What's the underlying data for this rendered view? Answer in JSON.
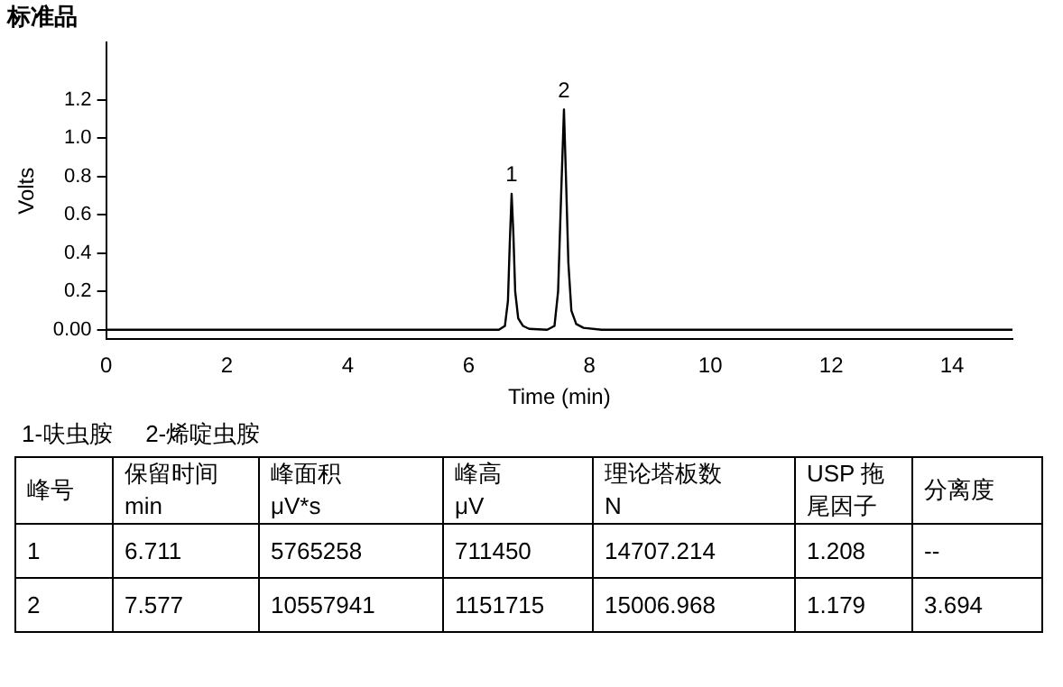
{
  "chart_data": {
    "type": "line",
    "title": "标准品",
    "xlabel": "Time (min)",
    "ylabel": "Volts",
    "x": [
      0,
      6.5,
      6.6,
      6.65,
      6.68,
      6.711,
      6.74,
      6.77,
      6.82,
      6.9,
      7.0,
      7.3,
      7.42,
      7.48,
      7.53,
      7.577,
      7.61,
      7.65,
      7.7,
      7.78,
      7.9,
      8.2,
      15
    ],
    "series": [
      {
        "color": "#000000",
        "values": [
          0,
          0,
          0.02,
          0.15,
          0.45,
          0.71,
          0.5,
          0.2,
          0.06,
          0.02,
          0.005,
          0,
          0.02,
          0.2,
          0.7,
          1.15,
          0.8,
          0.35,
          0.1,
          0.03,
          0.01,
          0,
          0
        ]
      }
    ],
    "xlim": [
      0,
      15
    ],
    "xticks": [
      0,
      2,
      4,
      6,
      8,
      10,
      12,
      14
    ],
    "ylim": [
      -0.05,
      1.5
    ],
    "yticks": [
      {
        "value": 0,
        "label": "0.00"
      },
      {
        "value": 0.2,
        "label": "0.2"
      },
      {
        "value": 0.4,
        "label": "0.4"
      },
      {
        "value": 0.6,
        "label": "0.6"
      },
      {
        "value": 0.8,
        "label": "0.8"
      },
      {
        "value": 1,
        "label": "1.0"
      },
      {
        "value": 1.2,
        "label": "1.2"
      }
    ],
    "grid": false,
    "legend": false,
    "marker": "none",
    "line_style": "solid",
    "annotations": [
      {
        "text": "1",
        "x": 6.711,
        "y": 0.711
      },
      {
        "text": "2",
        "x": 7.577,
        "y": 1.152
      },
      "1-呋虫胺",
      "2-烯啶虫胺",
      "峰号",
      "保留时间\nmin",
      "峰面积\nμV*s",
      "峰高\nμV",
      "理论塔板数\nN",
      "USP 拖尾因子",
      "分离度",
      "1",
      "6.711",
      "5765258",
      "711450",
      "14707.214",
      "1.208",
      "--",
      "2",
      "7.577",
      "10557941",
      "1151715",
      "15006.968",
      "1.179",
      "3.694"
    ]
  }
}
